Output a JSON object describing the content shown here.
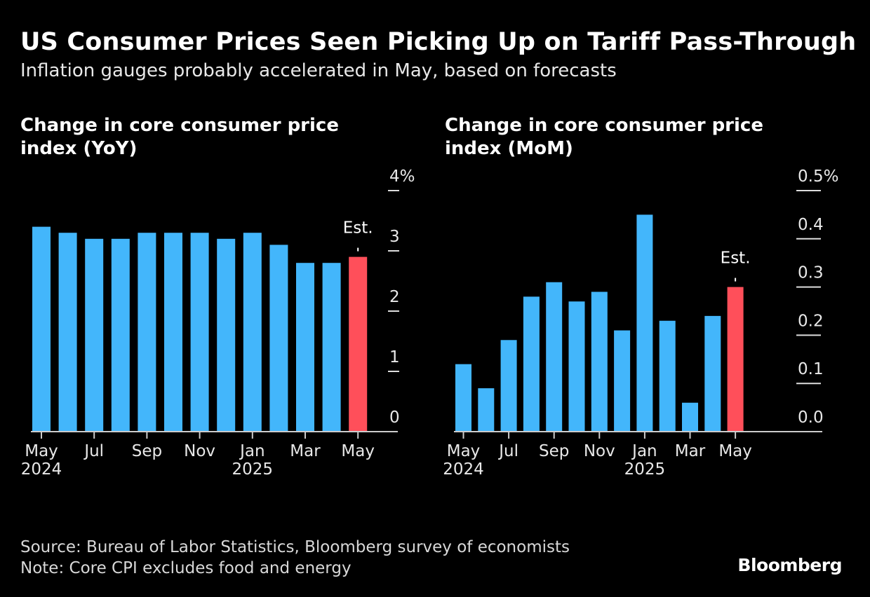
{
  "title": "US Consumer Prices Seen Picking Up on Tariff Pass-Through",
  "subtitle": "Inflation gauges probably accelerated in May, based on forecasts",
  "source": "Source: Bureau of Labor Statistics, Bloomberg survey of economists",
  "note": "Note: Core CPI excludes food and energy",
  "logo": "Bloomberg",
  "colors": {
    "bar": "#43b6fb",
    "estimate": "#ff4f5a",
    "background": "#000000"
  },
  "chart_data": [
    {
      "type": "bar",
      "title": "Change in core consumer price index (YoY)",
      "categories": [
        "May 2024",
        "Jun 2024",
        "Jul 2024",
        "Aug 2024",
        "Sep 2024",
        "Oct 2024",
        "Nov 2024",
        "Dec 2024",
        "Jan 2025",
        "Feb 2025",
        "Mar 2025",
        "Apr 2025",
        "May 2025"
      ],
      "values": [
        3.4,
        3.3,
        3.2,
        3.2,
        3.3,
        3.3,
        3.3,
        3.2,
        3.3,
        3.1,
        2.8,
        2.8,
        2.9
      ],
      "estimate_index": 12,
      "annotation": "Est.",
      "ylim": [
        0,
        4
      ],
      "yticks": [
        "0",
        "1",
        "2",
        "3",
        "4%"
      ],
      "xticks": [
        {
          "label": "May",
          "year": "2024"
        },
        {
          "label": "Jul"
        },
        {
          "label": "Sep"
        },
        {
          "label": "Nov"
        },
        {
          "label": "Jan",
          "year": "2025"
        },
        {
          "label": "Mar"
        },
        {
          "label": "May"
        }
      ],
      "grid": false
    },
    {
      "type": "bar",
      "title": "Change in core consumer price index (MoM)",
      "categories": [
        "May 2024",
        "Jun 2024",
        "Jul 2024",
        "Aug 2024",
        "Sep 2024",
        "Oct 2024",
        "Nov 2024",
        "Dec 2024",
        "Jan 2025",
        "Feb 2025",
        "Mar 2025",
        "Apr 2025",
        "May 2025"
      ],
      "values": [
        0.14,
        0.09,
        0.19,
        0.28,
        0.31,
        0.27,
        0.29,
        0.21,
        0.45,
        0.23,
        0.06,
        0.24,
        0.3
      ],
      "estimate_index": 12,
      "annotation": "Est.",
      "ylim": [
        0,
        0.5
      ],
      "yticks": [
        "0.0",
        "0.1",
        "0.2",
        "0.3",
        "0.4",
        "0.5%"
      ],
      "xticks": [
        {
          "label": "May",
          "year": "2024"
        },
        {
          "label": "Jul"
        },
        {
          "label": "Sep"
        },
        {
          "label": "Nov"
        },
        {
          "label": "Jan",
          "year": "2025"
        },
        {
          "label": "Mar"
        },
        {
          "label": "May"
        }
      ],
      "grid": false
    }
  ]
}
